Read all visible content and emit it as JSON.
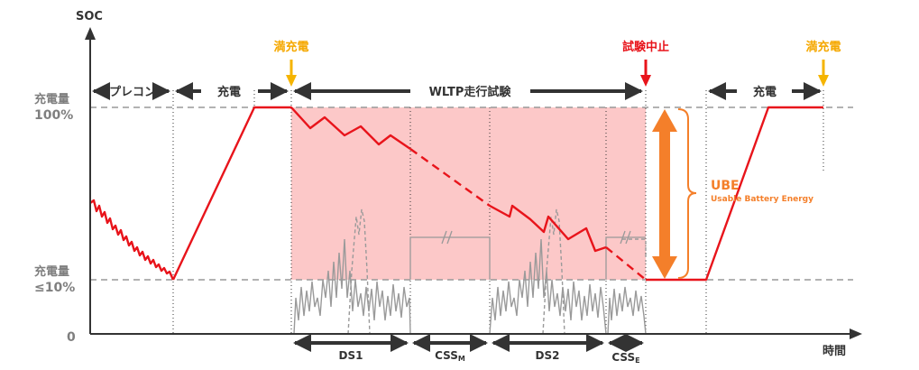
{
  "axes": {
    "y_label": "SOC",
    "x_label": "時間",
    "y_100_line1": "充電量",
    "y_100_line2": "100%",
    "y_10_line1": "充電量",
    "y_10_line2": "≤10%",
    "y_zero": "0"
  },
  "phases": {
    "precon": "プレコン",
    "charge1": "充電",
    "wltp": "WLTP走行試験",
    "charge2": "充電"
  },
  "events": {
    "full_charge_1": "満充電",
    "test_stop": "試験中止",
    "full_charge_2": "満充電"
  },
  "ube": {
    "abbr": "UBE",
    "full": "Usable Battery Energy"
  },
  "segments": {
    "ds1": "DS1",
    "cssm_main": "CSS",
    "cssm_sub": "M",
    "ds2": "DS2",
    "csse_main": "CSS",
    "csse_sub": "E"
  },
  "colors": {
    "soc_line": "#e8141b",
    "test_area": "#fcc8c8",
    "full_charge_arrow": "#f5b400",
    "stop_arrow": "#e8141b",
    "ube": "#f47f2a",
    "axis": "#333333",
    "label_gray": "#7f7f7f"
  }
}
